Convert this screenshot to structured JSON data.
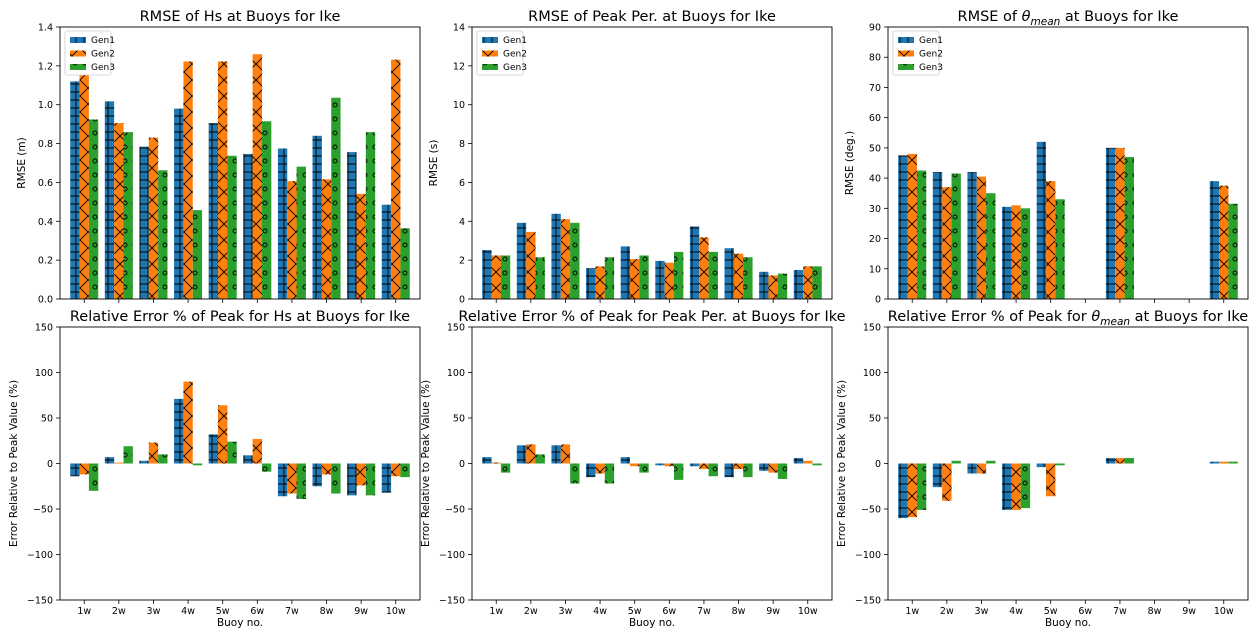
{
  "colors": {
    "Gen1": "#1f77b4",
    "Gen2": "#ff7f0e",
    "Gen3": "#2ca02c"
  },
  "hatches": {
    "Gen1": "grid",
    "Gen2": "cross-x",
    "Gen3": "circles"
  },
  "chart_data": [
    {
      "type": "bar",
      "title": "RMSE of Hs at Buoys for Ike",
      "xlabel": "",
      "ylabel": "RMSE (m)",
      "ylim": [
        0,
        1.5
      ],
      "yticks": [
        "0.0",
        "0.2",
        "0.4",
        "0.6",
        "0.8",
        "1.0",
        "1.2",
        "1.4"
      ],
      "categories": [
        "1w",
        "2w",
        "3w",
        "4w",
        "5w",
        "6w",
        "7w",
        "8w",
        "9w",
        "10w"
      ],
      "show_xticklabels": false,
      "legend": "top-left",
      "series": [
        {
          "name": "Gen1",
          "values": [
            1.2,
            1.09,
            0.84,
            1.05,
            0.97,
            0.8,
            0.83,
            0.9,
            0.81,
            0.52
          ]
        },
        {
          "name": "Gen2",
          "values": [
            1.27,
            0.97,
            0.89,
            1.31,
            1.31,
            1.35,
            0.65,
            0.66,
            0.58,
            1.32
          ]
        },
        {
          "name": "Gen3",
          "values": [
            0.99,
            0.92,
            0.71,
            0.49,
            0.79,
            0.98,
            0.73,
            1.11,
            0.92,
            0.39
          ]
        }
      ]
    },
    {
      "type": "bar",
      "title": "RMSE of Peak Per. at Buoys for Ike",
      "xlabel": "",
      "ylabel": "RMSE (s)",
      "ylim": [
        0,
        15
      ],
      "yticks": [
        "0",
        "2",
        "4",
        "6",
        "8",
        "10",
        "12",
        "14"
      ],
      "categories": [
        "1w",
        "2w",
        "3w",
        "4w",
        "5w",
        "6w",
        "7w",
        "8w",
        "9w",
        "10w"
      ],
      "show_xticklabels": false,
      "legend": "top-left",
      "series": [
        {
          "name": "Gen1",
          "values": [
            2.7,
            4.2,
            4.7,
            1.7,
            2.9,
            2.1,
            4.0,
            2.8,
            1.5,
            1.6
          ]
        },
        {
          "name": "Gen2",
          "values": [
            2.4,
            3.7,
            4.4,
            1.8,
            2.2,
            2.0,
            3.4,
            2.5,
            1.3,
            1.8
          ]
        },
        {
          "name": "Gen3",
          "values": [
            2.4,
            2.3,
            4.2,
            2.3,
            2.4,
            2.6,
            2.6,
            2.3,
            1.4,
            1.8
          ]
        }
      ]
    },
    {
      "type": "bar",
      "title": "RMSE of θmean at Buoys for Ike",
      "title_parts": {
        "before": "RMSE of ",
        "symbol": "θ",
        "sub": "mean",
        "after": " at Buoys for Ike"
      },
      "xlabel": "",
      "ylabel": "RMSE (deg.)",
      "ylim": [
        0,
        90
      ],
      "yticks": [
        "0",
        "10",
        "20",
        "30",
        "40",
        "50",
        "60",
        "70",
        "80",
        "90"
      ],
      "categories": [
        "1w",
        "2w",
        "3w",
        "4w",
        "5w",
        "6w",
        "7w",
        "8w",
        "9w",
        "10w"
      ],
      "show_xticklabels": false,
      "legend": "top-left",
      "series": [
        {
          "name": "Gen1",
          "values": [
            47.5,
            42.0,
            42.0,
            30.5,
            52.0,
            0,
            50.0,
            0,
            0,
            39.0
          ]
        },
        {
          "name": "Gen2",
          "values": [
            48.0,
            37.0,
            40.5,
            31.0,
            39.0,
            0,
            50.0,
            0,
            0,
            37.5
          ]
        },
        {
          "name": "Gen3",
          "values": [
            42.5,
            41.5,
            35.0,
            30.0,
            33.0,
            0,
            47.0,
            0,
            0,
            31.5
          ]
        }
      ]
    },
    {
      "type": "bar",
      "title": "Relative Error % of Peak for Hs at Buoys for Ike",
      "xlabel": "Buoy no.",
      "ylabel": "Error Relative to Peak Value (%)",
      "ylim": [
        -150,
        150
      ],
      "yticks": [
        "−150",
        "−100",
        "−50",
        "0",
        "50",
        "100",
        "150"
      ],
      "categories": [
        "1w",
        "2w",
        "3w",
        "4w",
        "5w",
        "6w",
        "7w",
        "8w",
        "9w",
        "10w"
      ],
      "show_xticklabels": true,
      "series": [
        {
          "name": "Gen1",
          "values": [
            -14,
            7,
            3,
            71,
            32,
            9,
            -36,
            -25,
            -35,
            -32
          ]
        },
        {
          "name": "Gen2",
          "values": [
            -12,
            1,
            23,
            90,
            64,
            27,
            -33,
            -12,
            -24,
            -14
          ]
        },
        {
          "name": "Gen3",
          "values": [
            -30,
            19,
            10,
            -2,
            24,
            -9,
            -39,
            -33,
            -35,
            -15
          ]
        }
      ]
    },
    {
      "type": "bar",
      "title": "Relative Error % of Peak for Peak Per. at Buoys for Ike",
      "xlabel": "Buoy no.",
      "ylabel": "Error Relative to Peak Value (%)",
      "ylim": [
        -150,
        150
      ],
      "yticks": [
        "−150",
        "−100",
        "−50",
        "0",
        "50",
        "100",
        "150"
      ],
      "categories": [
        "1w",
        "2w",
        "3w",
        "4w",
        "5w",
        "6w",
        "7w",
        "8w",
        "9w",
        "10w"
      ],
      "show_xticklabels": true,
      "series": [
        {
          "name": "Gen1",
          "values": [
            7,
            20,
            20,
            -15,
            7,
            -2,
            -3,
            -15,
            -8,
            6
          ]
        },
        {
          "name": "Gen2",
          "values": [
            1,
            21,
            21,
            -11,
            -3,
            -3,
            -6,
            -6,
            -10,
            3
          ]
        },
        {
          "name": "Gen3",
          "values": [
            -10,
            10,
            -22,
            -22,
            -10,
            -18,
            -14,
            -15,
            -17,
            -2
          ]
        }
      ]
    },
    {
      "type": "bar",
      "title": "Relative Error % of Peak for θmean at Buoys for Ike",
      "title_parts": {
        "before": "Relative Error % of Peak for ",
        "symbol": "θ",
        "sub": "mean",
        "after": " at Buoys for Ike"
      },
      "xlabel": "Buoy no.",
      "ylabel": "Error Relative to Peak Value (%)",
      "ylim": [
        -150,
        150
      ],
      "yticks": [
        "−150",
        "−100",
        "−50",
        "0",
        "50",
        "100",
        "150"
      ],
      "categories": [
        "1w",
        "2w",
        "3w",
        "4w",
        "5w",
        "6w",
        "7w",
        "8w",
        "9w",
        "10w"
      ],
      "show_xticklabels": true,
      "series": [
        {
          "name": "Gen1",
          "values": [
            -60,
            -26,
            -11,
            -51,
            -4,
            0,
            6,
            0,
            0,
            2
          ]
        },
        {
          "name": "Gen2",
          "values": [
            -59,
            -41,
            -11,
            -51,
            -36,
            0,
            6,
            0,
            0,
            2
          ]
        },
        {
          "name": "Gen3",
          "values": [
            -51,
            3,
            3,
            -49,
            -2,
            0,
            6,
            0,
            0,
            2
          ]
        }
      ]
    }
  ]
}
